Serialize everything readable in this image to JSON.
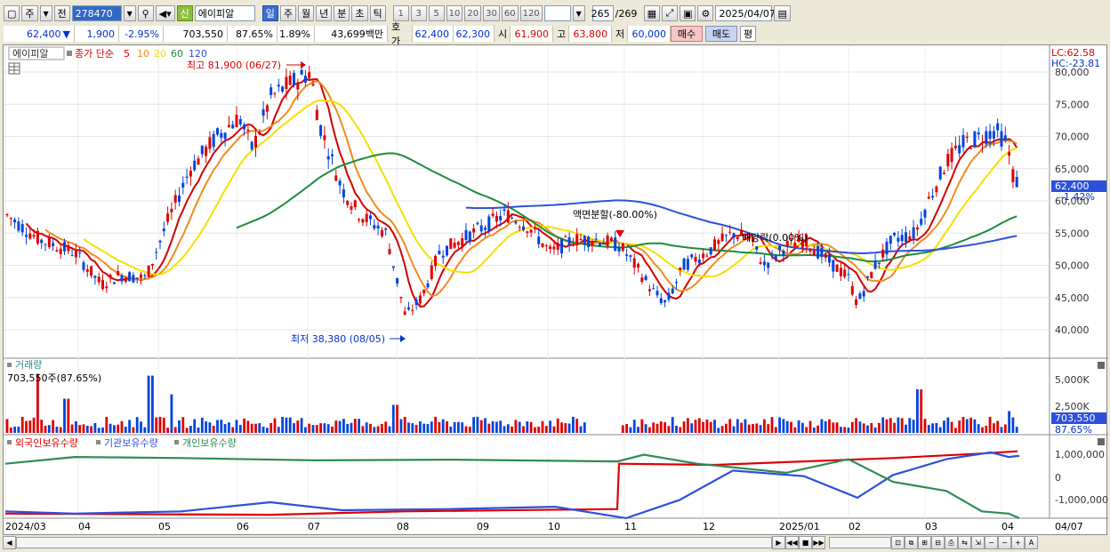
{
  "toolbar": {
    "market": "주",
    "period_type": "전",
    "code": "278470",
    "credit_badge": "신",
    "stock_name": "에이피알",
    "tabs": [
      "일",
      "주",
      "월",
      "년",
      "분",
      "초",
      "틱"
    ],
    "active_tab": "일",
    "intervals": [
      "1",
      "3",
      "5",
      "10",
      "20",
      "30",
      "60",
      "120"
    ],
    "count": "265",
    "total": "/269",
    "date": "2025/04/07"
  },
  "quote": {
    "price": "62,400",
    "arrow": "▼",
    "change": "1,900",
    "change_pct": "-2.95%",
    "volume": "703,550",
    "volume_ratio": "87.65%",
    "turnover": "1.89%",
    "amount": "43,699백만",
    "ask_label": "호가",
    "ask": "62,400",
    "bid": "62,300",
    "open_label": "시",
    "open": "61,900",
    "high_label": "고",
    "high": "63,800",
    "low_label": "저",
    "low": "60,000",
    "buy": "매수",
    "sell": "매도",
    "avg": "평"
  },
  "price_panel": {
    "name_tag": "에이피알",
    "ma_label": "종가 단순",
    "ma_periods": [
      "5",
      "10",
      "20",
      "60",
      "120"
    ],
    "lc": "LC:62.58",
    "hc": "HC:-23.81",
    "high_note": "최고 81,900 (06/27)",
    "low_note": "최저 38,380 (08/05)",
    "split_note": "액면분할(-80.00%)",
    "dividend_note": "배당락(0.00%)",
    "current_label": "62,400",
    "current_pct": "-1.42%",
    "y_ticks": [
      "80,000",
      "75,000",
      "70,000",
      "65,000",
      "60,000",
      "55,000",
      "50,000",
      "45,000",
      "40,000"
    ]
  },
  "volume_panel": {
    "title": "거래량",
    "summary": "703,550주(87.65%)",
    "y_ticks": [
      "5,000K",
      "2,500K"
    ],
    "current": "703,550",
    "current_pct": "87.65%"
  },
  "holding_panel": {
    "legend": [
      "외국인보유수량",
      "기관보유수량",
      "개인보유수량"
    ],
    "y_ticks": [
      "1,000,000",
      "0",
      "-1,000,000"
    ]
  },
  "x_axis": [
    "2024/03",
    "04",
    "05",
    "06",
    "07",
    "08",
    "09",
    "10",
    "11",
    "12",
    "2025/01",
    "02",
    "03",
    "04",
    "04/07"
  ],
  "colors": {
    "up": "#e00000",
    "down": "#0044dd",
    "ma5": "#d40000",
    "ma10": "#f08c1e",
    "ma20": "#f5e000",
    "ma60": "#1e8c3c",
    "ma120": "#2d50dc",
    "foreign": "#e00000",
    "inst": "#2d50dc",
    "retail": "#2e8b57"
  }
}
